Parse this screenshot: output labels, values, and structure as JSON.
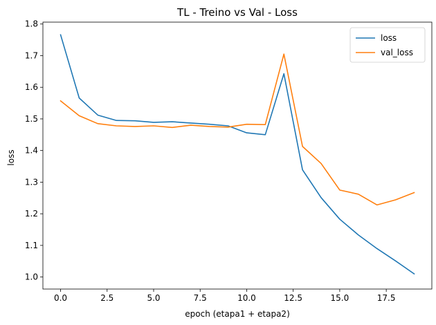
{
  "chart_data": {
    "type": "line",
    "title": "TL - Treino vs Val - Loss",
    "xlabel": "epoch (etapa1 + etapa2)",
    "ylabel": "loss",
    "xlim": [
      -0.95,
      19.95
    ],
    "ylim": [
      0.962,
      1.806
    ],
    "xticks": [
      0.0,
      2.5,
      5.0,
      7.5,
      10.0,
      12.5,
      15.0,
      17.5
    ],
    "xtick_labels": [
      "0.0",
      "2.5",
      "5.0",
      "7.5",
      "10.0",
      "12.5",
      "15.0",
      "17.5"
    ],
    "yticks": [
      1.0,
      1.1,
      1.2,
      1.3,
      1.4,
      1.5,
      1.6,
      1.7,
      1.8
    ],
    "ytick_labels": [
      "1.0",
      "1.1",
      "1.2",
      "1.3",
      "1.4",
      "1.5",
      "1.6",
      "1.7",
      "1.8"
    ],
    "grid": false,
    "legend_position": "top-right",
    "x": [
      0,
      1,
      2,
      3,
      4,
      5,
      6,
      7,
      8,
      9,
      10,
      11,
      12,
      13,
      14,
      15,
      16,
      17,
      18,
      19
    ],
    "series": [
      {
        "name": "loss",
        "color": "#1f77b4",
        "values": [
          1.766,
          1.566,
          1.512,
          1.495,
          1.494,
          1.489,
          1.491,
          1.487,
          1.483,
          1.478,
          1.456,
          1.45,
          1.643,
          1.339,
          1.251,
          1.183,
          1.133,
          1.09,
          1.051,
          1.01
        ]
      },
      {
        "name": "val_loss",
        "color": "#ff7f0e",
        "values": [
          1.557,
          1.51,
          1.485,
          1.478,
          1.476,
          1.478,
          1.473,
          1.48,
          1.476,
          1.474,
          1.483,
          1.482,
          1.705,
          1.413,
          1.359,
          1.275,
          1.262,
          1.228,
          1.244,
          1.267
        ]
      }
    ]
  }
}
